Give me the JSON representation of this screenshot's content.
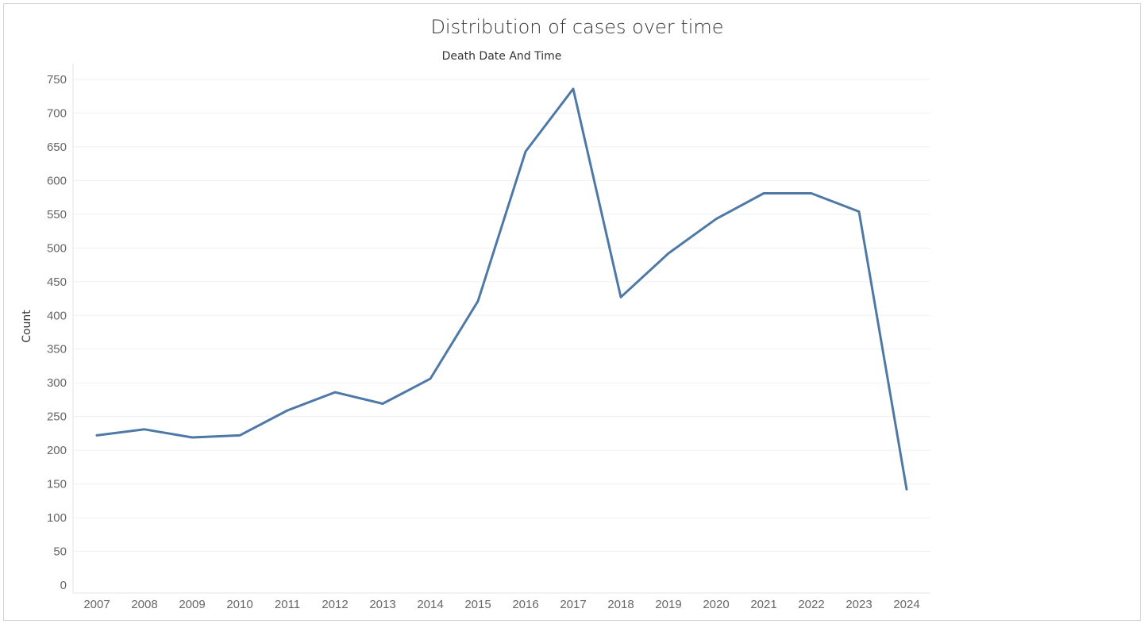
{
  "chart_data": {
    "type": "line",
    "title": "Distribution of cases over time",
    "column_header": "Death Date And Time",
    "xlabel": "",
    "ylabel": "Count",
    "x": [
      "2007",
      "2008",
      "2009",
      "2010",
      "2011",
      "2012",
      "2013",
      "2014",
      "2015",
      "2016",
      "2017",
      "2018",
      "2019",
      "2020",
      "2021",
      "2022",
      "2023",
      "2024"
    ],
    "series": [
      {
        "values": [
          222,
          231,
          219,
          222,
          259,
          286,
          269,
          306,
          421,
          643,
          736,
          427,
          492,
          543,
          581,
          581,
          554,
          142
        ],
        "color": "#4e79a7"
      }
    ],
    "yticks": [
      0,
      50,
      100,
      150,
      200,
      250,
      300,
      350,
      400,
      450,
      500,
      550,
      600,
      650,
      700,
      750
    ],
    "ylim": [
      0,
      750
    ],
    "grid": true,
    "legend": "none"
  }
}
